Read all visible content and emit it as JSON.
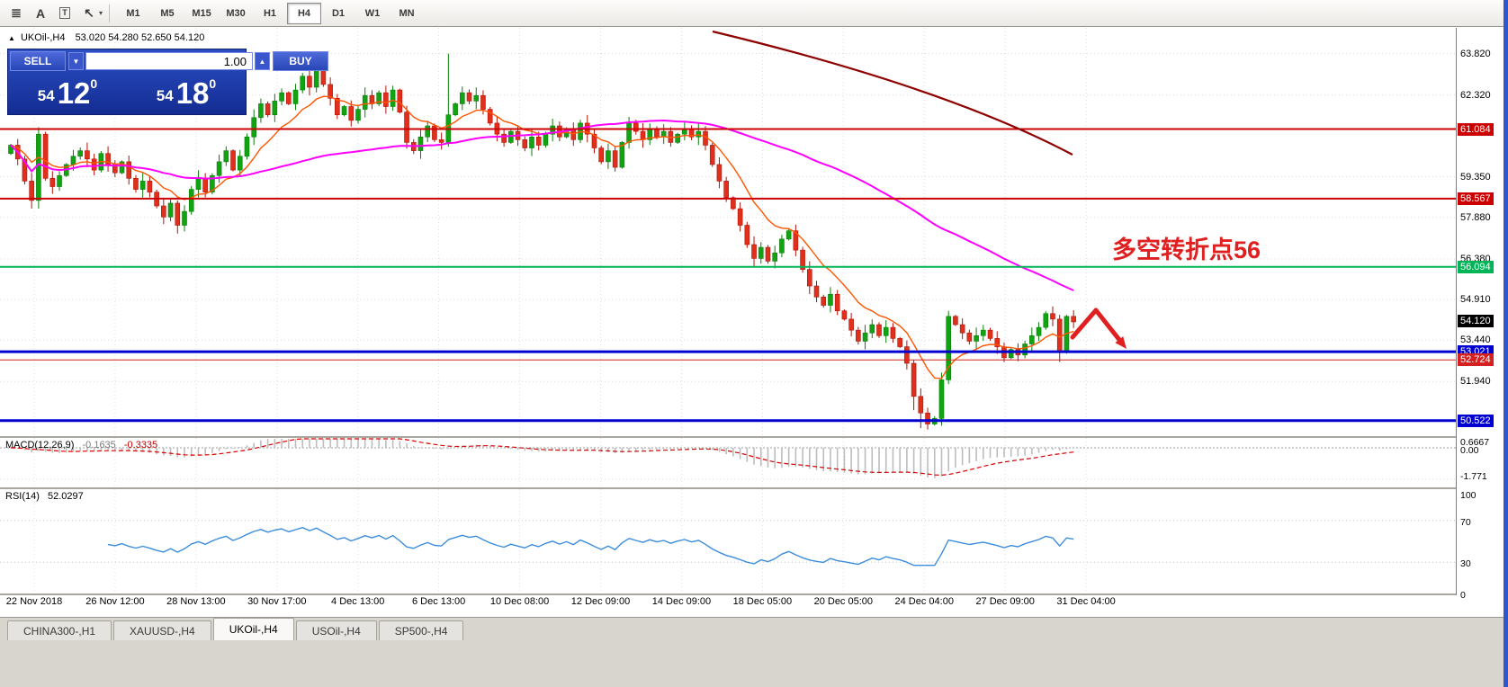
{
  "toolbar": {
    "tool_icons": [
      {
        "name": "objects-list-icon",
        "glyph": "≣"
      },
      {
        "name": "text-label-icon",
        "glyph": "A"
      },
      {
        "name": "text-box-icon",
        "glyph": "T"
      },
      {
        "name": "cursor-icon",
        "glyph": "↖"
      }
    ],
    "timeframes": [
      "M1",
      "M5",
      "M15",
      "M30",
      "H1",
      "H4",
      "D1",
      "W1",
      "MN"
    ],
    "active_timeframe": "H4"
  },
  "symbol_header": {
    "marker": "▲",
    "symbol": "UKOil-,H4",
    "ohlc": "53.020 54.280 52.650 54.120"
  },
  "trade_panel": {
    "sell_label": "SELL",
    "buy_label": "BUY",
    "volume": "1.00",
    "spin_down": "▼",
    "spin_up": "▲",
    "sell_price": {
      "prefix": "54",
      "big": "12",
      "sup": "0"
    },
    "buy_price": {
      "prefix": "54",
      "big": "18",
      "sup": "0"
    }
  },
  "annotation": {
    "text": "多空转折点56",
    "color": "#e02020"
  },
  "price_axis": {
    "ticks": [
      "63.820",
      "62.320",
      "59.350",
      "57.880",
      "56.380",
      "54.910",
      "53.440",
      "51.940"
    ],
    "tick_values": [
      63.82,
      62.32,
      59.35,
      57.88,
      56.38,
      54.91,
      53.44,
      51.94
    ],
    "levels": [
      {
        "label": "61.084",
        "value": 61.084,
        "color": "#cc0000",
        "width": 2
      },
      {
        "label": "58.567",
        "value": 58.567,
        "color": "#cc0000",
        "width": 2
      },
      {
        "label": "56.094",
        "value": 56.094,
        "color": "#00b557",
        "width": 2
      },
      {
        "label": "53.021",
        "value": 53.021,
        "color": "#0000d0",
        "width": 3
      },
      {
        "label": "52.724",
        "value": 52.724,
        "color": "#d42020",
        "width": 1
      },
      {
        "label": "50.522",
        "value": 50.522,
        "color": "#0000d0",
        "width": 3
      }
    ],
    "current_price": {
      "label": "54.120",
      "value": 54.12,
      "bg": "#000000"
    }
  },
  "chart_data": {
    "type": "candlestick",
    "title": "UKOil-,H4",
    "ylim": [
      49.9,
      64.75
    ],
    "x_labels": [
      "22 Nov 2018",
      "26 Nov 12:00",
      "28 Nov 13:00",
      "30 Nov 17:00",
      "4 Dec 13:00",
      "6 Dec 13:00",
      "10 Dec 08:00",
      "12 Dec 09:00",
      "14 Dec 09:00",
      "18 Dec 05:00",
      "20 Dec 05:00",
      "24 Dec 04:00",
      "27 Dec 09:00",
      "31 Dec 04:00"
    ],
    "first_open": 60.2,
    "closes": [
      60.5,
      60.0,
      59.2,
      58.5,
      60.9,
      59.3,
      59.0,
      59.4,
      59.8,
      60.1,
      60.3,
      60.0,
      59.6,
      60.2,
      59.8,
      59.5,
      59.9,
      59.3,
      58.9,
      59.2,
      58.8,
      58.3,
      57.9,
      58.4,
      57.6,
      58.1,
      58.9,
      59.3,
      58.8,
      59.4,
      59.9,
      60.3,
      59.6,
      60.1,
      60.8,
      61.5,
      62.0,
      61.6,
      62.1,
      62.4,
      62.0,
      62.5,
      63.0,
      62.6,
      63.2,
      62.7,
      62.2,
      61.6,
      61.9,
      61.4,
      61.8,
      62.3,
      62.0,
      62.4,
      61.9,
      62.5,
      61.7,
      60.6,
      60.3,
      60.8,
      61.2,
      60.7,
      60.6,
      61.6,
      62.0,
      62.4,
      62.1,
      62.3,
      61.8,
      61.3,
      60.9,
      60.6,
      61.0,
      60.7,
      60.4,
      60.8,
      60.5,
      60.9,
      61.2,
      60.8,
      61.1,
      60.7,
      61.3,
      60.9,
      60.4,
      59.9,
      60.3,
      59.7,
      60.6,
      61.3,
      61.0,
      60.7,
      61.1,
      60.8,
      61.0,
      60.6,
      60.9,
      61.1,
      60.8,
      61.0,
      60.5,
      59.8,
      59.2,
      58.6,
      58.2,
      57.6,
      56.9,
      56.4,
      56.8,
      56.3,
      56.6,
      57.1,
      57.4,
      56.7,
      56.0,
      55.4,
      55.0,
      54.7,
      55.1,
      54.5,
      54.2,
      53.8,
      53.4,
      53.7,
      54.0,
      53.6,
      53.9,
      53.5,
      53.2,
      52.6,
      51.4,
      50.8,
      50.4,
      50.6,
      52.0,
      54.3,
      54.0,
      53.7,
      53.4,
      53.6,
      53.8,
      53.5,
      53.2,
      52.8,
      53.1,
      52.9,
      53.3,
      53.6,
      53.9,
      54.4,
      54.2,
      53.0,
      54.3,
      54.1
    ],
    "wick_overrides": {
      "4": [
        61.15,
        58.2
      ],
      "24": [
        58.5,
        57.3
      ],
      "44": [
        63.45,
        null
      ],
      "63": [
        63.82,
        null
      ],
      "130": [
        null,
        50.9
      ],
      "131": [
        null,
        50.25
      ],
      "132": [
        null,
        50.2
      ],
      "133": [
        null,
        50.35
      ],
      "135": [
        54.5,
        null
      ],
      "151": [
        null,
        52.65
      ]
    },
    "up_color": "#12a312",
    "down_color": "#e0301c",
    "moving_averages": [
      {
        "name": "fast-ma",
        "kind": "ema",
        "period": 10,
        "color": "#ff5500",
        "width": 1.4
      },
      {
        "name": "slow-ma",
        "kind": "sma",
        "period": 60,
        "color": "#ff00ff",
        "width": 2
      }
    ],
    "trend_line_color": "#8e0000",
    "arrow_color": "#e02020",
    "grid": true
  },
  "macd_panel": {
    "label": "MACD(12,26,9)",
    "value_main": "-0.1635",
    "value_signal": "-0.3335",
    "scale_labels": [
      "0.6667",
      "0.00",
      "-1.771"
    ],
    "fast": 12,
    "slow": 26,
    "signal": 9,
    "hist_color": "#bdbdbd",
    "signal_color": "#d80000"
  },
  "rsi_panel": {
    "label": "RSI(14)",
    "value": "52.0297",
    "period": 14,
    "scale_labels": [
      "100",
      "70",
      "30",
      "0"
    ],
    "level_lines": [
      70,
      30
    ],
    "line_color": "#3c8ddc"
  },
  "tabs": {
    "items": [
      "CHINA300-,H1",
      "XAUUSD-,H4",
      "UKOil-,H4",
      "USOil-,H4",
      "SP500-,H4"
    ],
    "active": "UKOil-,H4"
  }
}
